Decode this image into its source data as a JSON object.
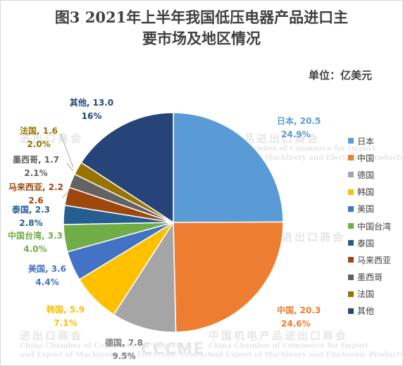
{
  "title": "图3  2021年上半年我国低压电器产品进口主要市场及地区情况",
  "title_line1": "图3  2021年上半年我国低压电器产品进口主",
  "title_line2": "要市场及地区情况",
  "unit_label": "单位：亿美元",
  "watermarks": [
    "中国机电产品进出口商会",
    "China Chamber of Commerce for Import",
    "and Export of Machinery and Electronic Products",
    "进出口商会",
    "CCCME"
  ],
  "chart_data": {
    "type": "pie",
    "title": "图3  2021年上半年我国低压电器产品进口主要市场及地区情况",
    "unit": "亿美元",
    "legend_position": "right",
    "slices": [
      {
        "name": "日本",
        "value": 20.5,
        "percent": "24.9%",
        "value_label": "日本, 20.5",
        "color": "#5b9bd5"
      },
      {
        "name": "中国",
        "value": 20.3,
        "percent": "24.6%",
        "value_label": "中国, 20.3",
        "color": "#ed7d31"
      },
      {
        "name": "德国",
        "value": 7.8,
        "percent": "9.5%",
        "value_label": "德国, 7.8",
        "color": "#a5a5a5"
      },
      {
        "name": "韩国",
        "value": 5.9,
        "percent": "7.1%",
        "value_label": "韩国, 5.9",
        "color": "#ffc000"
      },
      {
        "name": "美国",
        "value": 3.6,
        "percent": "4.4%",
        "value_label": "美国, 3.6",
        "color": "#4472c4"
      },
      {
        "name": "中国台湾",
        "value": 3.3,
        "percent": "4.0%",
        "value_label": "中国台湾, 3.3",
        "color": "#70ad47"
      },
      {
        "name": "泰国",
        "value": 2.3,
        "percent": "2.8%",
        "value_label": "泰国, 2.3",
        "color": "#255e91"
      },
      {
        "name": "马来西亚",
        "value": 2.2,
        "percent": "2.6",
        "value_label": "马来西亚, 2.2",
        "color": "#9e480e"
      },
      {
        "name": "墨西哥",
        "value": 1.7,
        "percent": "2.1%",
        "value_label": "墨西哥, 1.7",
        "color": "#636363"
      },
      {
        "name": "法国",
        "value": 1.6,
        "percent": "2.0%",
        "value_label": "法国, 1.6",
        "color": "#997300"
      },
      {
        "name": "其他",
        "value": 13.0,
        "percent": "16%",
        "value_label": "其他, 13.0",
        "color": "#264478"
      }
    ]
  }
}
